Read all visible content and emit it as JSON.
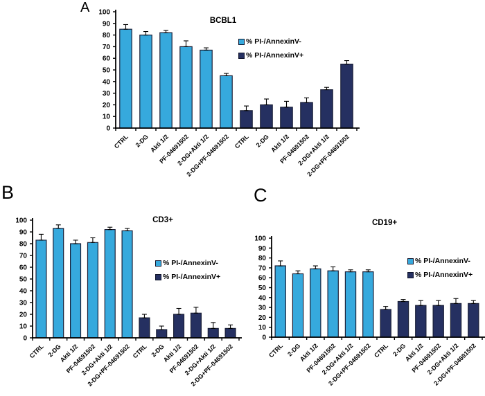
{
  "chart_data": [
    {
      "panel": "A",
      "type": "bar",
      "title": "BCBL1",
      "categories": [
        "CTRL",
        "2-DG",
        "Akti 1/2",
        "PF-04691502",
        "2-DG+Akti 1/2",
        "2-DG+PF-04691502"
      ],
      "series": [
        {
          "name": "% PI-/AnnexinV-",
          "color": "#36A9DD",
          "values": [
            85,
            80,
            82,
            70,
            67,
            45
          ],
          "errors": [
            4,
            3,
            2,
            5,
            2,
            2
          ]
        },
        {
          "name": "% PI-/AnnexinV+",
          "color": "#253061",
          "values": [
            15,
            20,
            18,
            22,
            33,
            55
          ],
          "errors": [
            4,
            5,
            5,
            4,
            2,
            3
          ]
        }
      ],
      "ylim": [
        0,
        100
      ],
      "ytick_step": 10,
      "grid": false,
      "legend_position": "right"
    },
    {
      "panel": "B",
      "type": "bar",
      "title": "CD3+",
      "categories": [
        "CTRL",
        "2-DG",
        "Akti 1/2",
        "PF-04691502",
        "2-DG+Akti 1/2",
        "2-DG+PF-04691502"
      ],
      "series": [
        {
          "name": "% PI-/AnnexinV-",
          "color": "#36A9DD",
          "values": [
            83,
            93,
            80,
            81,
            92,
            91
          ],
          "errors": [
            5,
            3,
            3,
            4,
            2,
            2
          ]
        },
        {
          "name": "% PI-/AnnexinV+",
          "color": "#253061",
          "values": [
            17,
            7,
            20,
            21,
            8,
            8
          ],
          "errors": [
            3,
            3,
            5,
            5,
            5,
            3
          ]
        }
      ],
      "ylim": [
        0,
        100
      ],
      "ytick_step": 10,
      "grid": false,
      "legend_position": "right"
    },
    {
      "panel": "C",
      "type": "bar",
      "title": "CD19+",
      "categories": [
        "CTRL",
        "2-DG",
        "Akti 1/2",
        "PF-04691502",
        "2-DG+Akti 1/2",
        "2-DG+PF-04691502"
      ],
      "series": [
        {
          "name": "% PI-/AnnexinV-",
          "color": "#36A9DD",
          "values": [
            72,
            64,
            69,
            67,
            66,
            66
          ],
          "errors": [
            5,
            3,
            3,
            4,
            2,
            2
          ]
        },
        {
          "name": "% PI-/AnnexinV+",
          "color": "#253061",
          "values": [
            28,
            36,
            32,
            32,
            34,
            34
          ],
          "errors": [
            3,
            2,
            5,
            5,
            5,
            3
          ]
        }
      ],
      "ylim": [
        0,
        100
      ],
      "ytick_step": 10,
      "grid": false,
      "legend_position": "right"
    }
  ],
  "colors": {
    "series_light": "#36A9DD",
    "series_dark": "#253061",
    "axis": "#000000",
    "background": "#FFFFFF"
  }
}
